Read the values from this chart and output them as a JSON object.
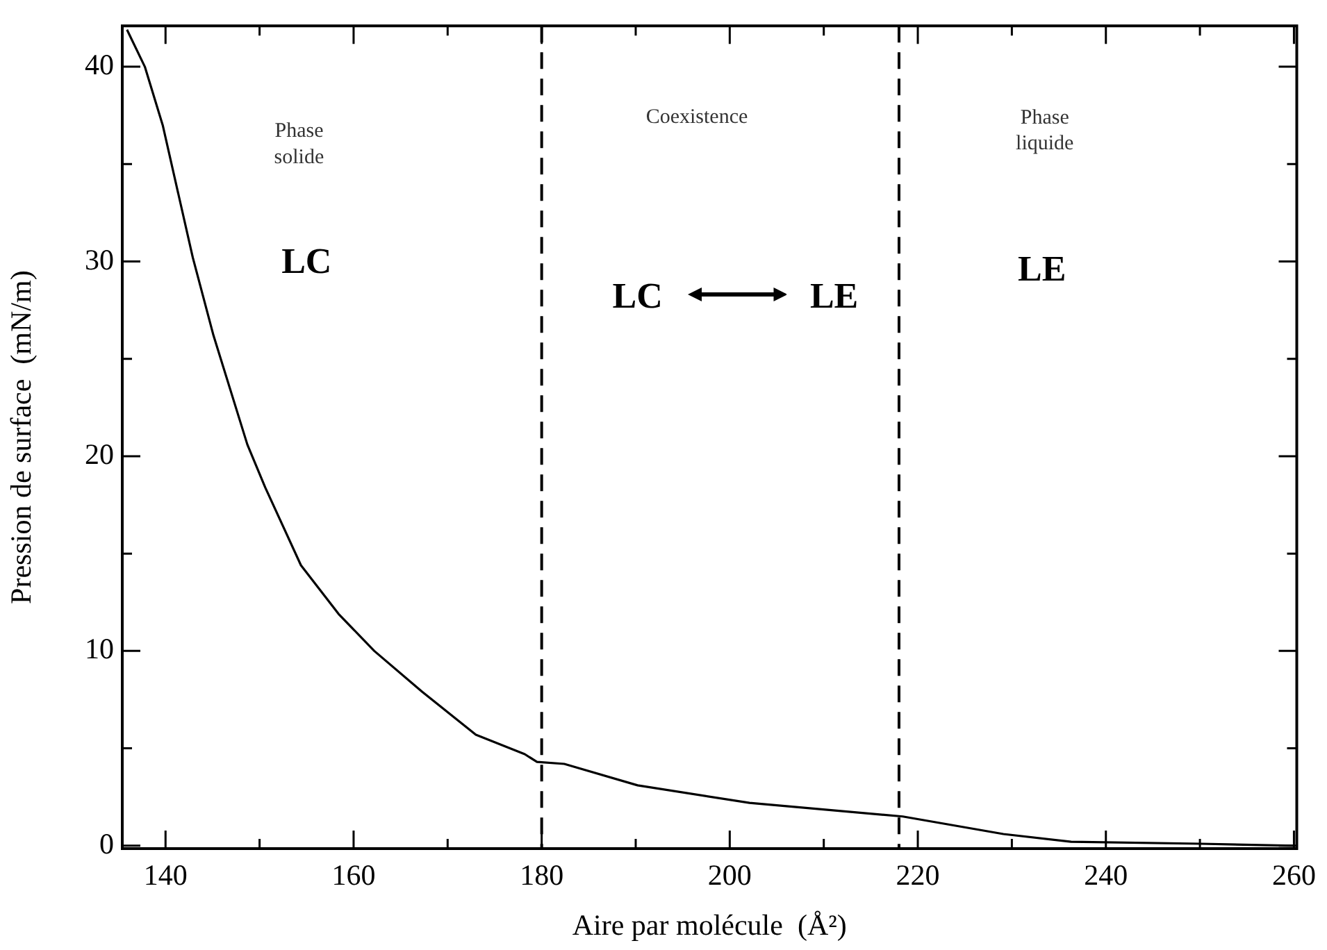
{
  "chart_data": {
    "type": "line",
    "xlabel": "Aire par molécule  (Å²)",
    "ylabel": "Pression de surface  (mN/m)",
    "x": [
      135.9,
      137.8,
      139.7,
      142.9,
      145.1,
      148.7,
      150.6,
      154.4,
      158.4,
      162.2,
      167.3,
      173.0,
      178.2,
      179.5,
      182.4,
      190.2,
      202.1,
      218.4,
      229.1,
      236.3,
      250.1,
      260
    ],
    "series": [
      {
        "color": "#000000",
        "values": [
          41.9,
          40,
          37.0,
          30.2,
          26.2,
          20.6,
          18.4,
          14.4,
          11.9,
          10.0,
          7.9,
          5.7,
          4.7,
          4.3,
          4.2,
          3.1,
          2.2,
          1.5,
          0.6,
          0.2,
          0.1,
          0
        ]
      }
    ],
    "xlim": [
      135.4,
      260.3
    ],
    "ylim": [
      -0.15,
      42.1
    ],
    "xticks": [
      140,
      {
        "value": 150,
        "label": null
      },
      160,
      {
        "value": 170,
        "label": null
      },
      180,
      {
        "value": 190,
        "label": null
      },
      200,
      {
        "value": 210,
        "label": null
      },
      220,
      {
        "value": 230,
        "label": null
      },
      240,
      {
        "value": 250,
        "label": null
      },
      260
    ],
    "yticks": [
      0,
      {
        "value": 5,
        "label": null
      },
      10,
      {
        "value": 15,
        "label": null
      },
      20,
      {
        "value": 25,
        "label": null
      },
      30,
      {
        "value": 35,
        "label": null
      },
      40
    ],
    "ref_lines": [
      {
        "axis": "x",
        "value": 180,
        "color": "#000000",
        "line_style": "dashed"
      },
      {
        "axis": "x",
        "value": 218,
        "color": "#000000",
        "line_style": "dashed"
      }
    ],
    "annotations": [
      "Phase\nsolide",
      "LC",
      "Coexistence",
      "LC",
      "LE",
      "Phase\nliquide",
      "LE"
    ],
    "grid": false,
    "legend": false,
    "marker": "none",
    "line_style": "solid"
  }
}
